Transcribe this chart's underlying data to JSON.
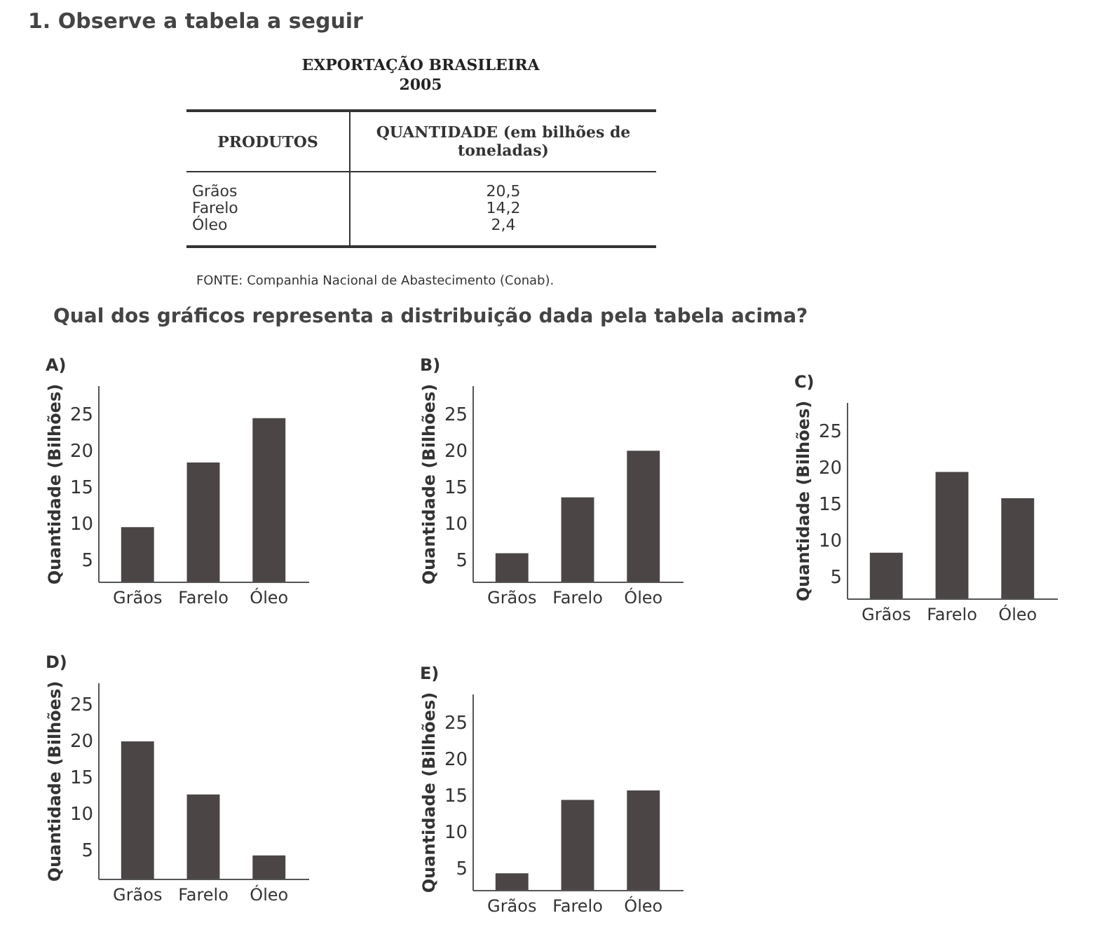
{
  "chart_data": [
    {
      "type": "other",
      "title": "EXPORTAÇÃO BRASILEIRA",
      "subtitle": "2005",
      "xlabel": "PRODUTOS",
      "ylabel": "QUANTIDADE (em bilhões de toneladas)",
      "categories": [
        "Grãos",
        "Farelo",
        "Óleo"
      ],
      "value_labels": [
        "20,5",
        "14,2",
        "2,4"
      ],
      "annotations": [
        "1. Observe a tabela a seguir",
        "FONTE: Companhia Nacional de Abastecimento (Conab).",
        "Qual dos gráficos representa a distribuição dada pela tabela acima?"
      ]
    },
    {
      "type": "bar",
      "title": "A)",
      "ylabel": "Quantidade (Bilhões)",
      "categories": [
        "Grãos",
        "Farelo",
        "Óleo"
      ],
      "values": [
        9.5,
        18.4,
        24.5
      ],
      "color": "#4b4545",
      "ylim": [
        2,
        29
      ],
      "yticks": [
        5,
        10,
        15,
        20,
        25
      ],
      "grid": false,
      "legend": false
    },
    {
      "type": "bar",
      "title": "B)",
      "ylabel": "Quantidade (Bilhões)",
      "categories": [
        "Grãos",
        "Farelo",
        "Óleo"
      ],
      "values": [
        5.9,
        13.6,
        20
      ],
      "color": "#4b4545",
      "ylim": [
        2,
        29
      ],
      "yticks": [
        5,
        10,
        15,
        20,
        25
      ],
      "grid": false,
      "legend": false
    },
    {
      "type": "bar",
      "title": "C)",
      "ylabel": "Quantidade (Bilhões)",
      "categories": [
        "Grãos",
        "Farelo",
        "Óleo"
      ],
      "values": [
        8.3,
        19.4,
        15.8
      ],
      "color": "#4b4545",
      "ylim": [
        2,
        29
      ],
      "yticks": [
        5,
        10,
        15,
        20,
        25
      ],
      "grid": false,
      "legend": false
    },
    {
      "type": "bar",
      "title": "D)",
      "ylabel": "Quantidade (Bilhões)",
      "categories": [
        "Grãos",
        "Farelo",
        "Óleo"
      ],
      "values": [
        19.9,
        12.6,
        4.2
      ],
      "color": "#4b4545",
      "ylim": [
        1,
        28
      ],
      "yticks": [
        5,
        10,
        15,
        20,
        25
      ],
      "grid": false,
      "legend": false
    },
    {
      "type": "bar",
      "title": "E)",
      "ylabel": "Quantidade (Bilhões)",
      "categories": [
        "Grãos",
        "Farelo",
        "Óleo"
      ],
      "values": [
        4.3,
        14.4,
        15.7
      ],
      "color": "#4b4545",
      "ylim": [
        2,
        29
      ],
      "yticks": [
        5,
        10,
        15,
        20,
        25
      ],
      "grid": false,
      "legend": false
    }
  ]
}
